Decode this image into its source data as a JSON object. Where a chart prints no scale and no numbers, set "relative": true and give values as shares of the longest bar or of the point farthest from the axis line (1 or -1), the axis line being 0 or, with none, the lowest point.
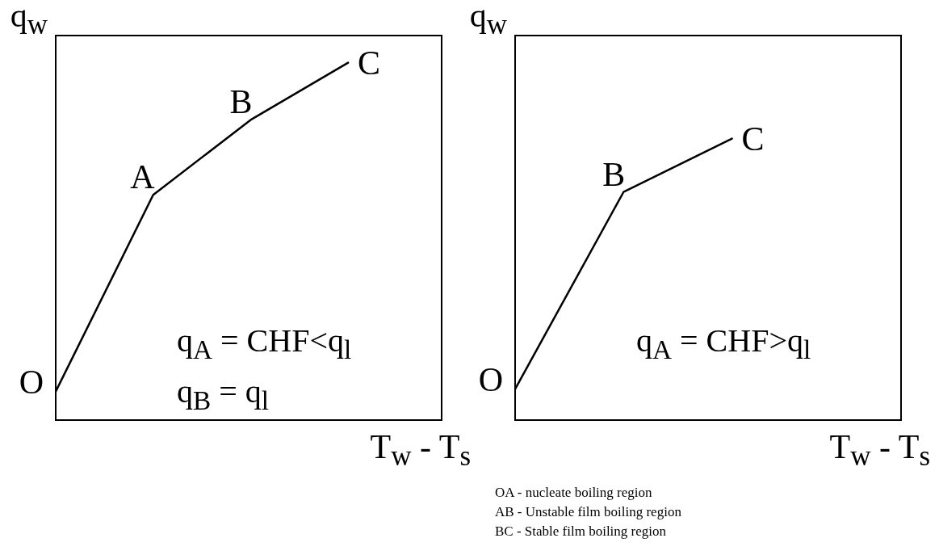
{
  "chart_data": [
    {
      "type": "line",
      "relative": true,
      "xlabel": "T$_{w}$ - T$_{s}$",
      "ylabel": "q$_{w}$",
      "categories": [
        null,
        null,
        null,
        null
      ],
      "tick_labels": false,
      "series": [
        {
          "color": "#000000",
          "values": [
            0.08,
            0.63,
            0.84,
            1
          ]
        }
      ],
      "annotations": [
        "O",
        "A",
        "B",
        "C",
        "q$_{A}$ = CHF<q$_{l}$",
        "q$_{B}$ = q$_{l}$"
      ]
    },
    {
      "type": "line",
      "relative": true,
      "xlabel": "T$_{w}$ - T$_{s}$",
      "ylabel": "q$_{w}$",
      "categories": [
        null,
        null,
        null
      ],
      "tick_labels": false,
      "series": [
        {
          "color": "#000000",
          "values": [
            0.11,
            0.81,
            1
          ]
        }
      ],
      "annotations": [
        "O",
        "B",
        "C",
        "q$_{A}$ = CHF>q$_{l}$"
      ]
    },
    {
      "type": "other",
      "annotations": [
        "OA - nucleate boiling region",
        "AB - Unstable film boiling region",
        "BC - Stable film boiling region"
      ]
    }
  ]
}
